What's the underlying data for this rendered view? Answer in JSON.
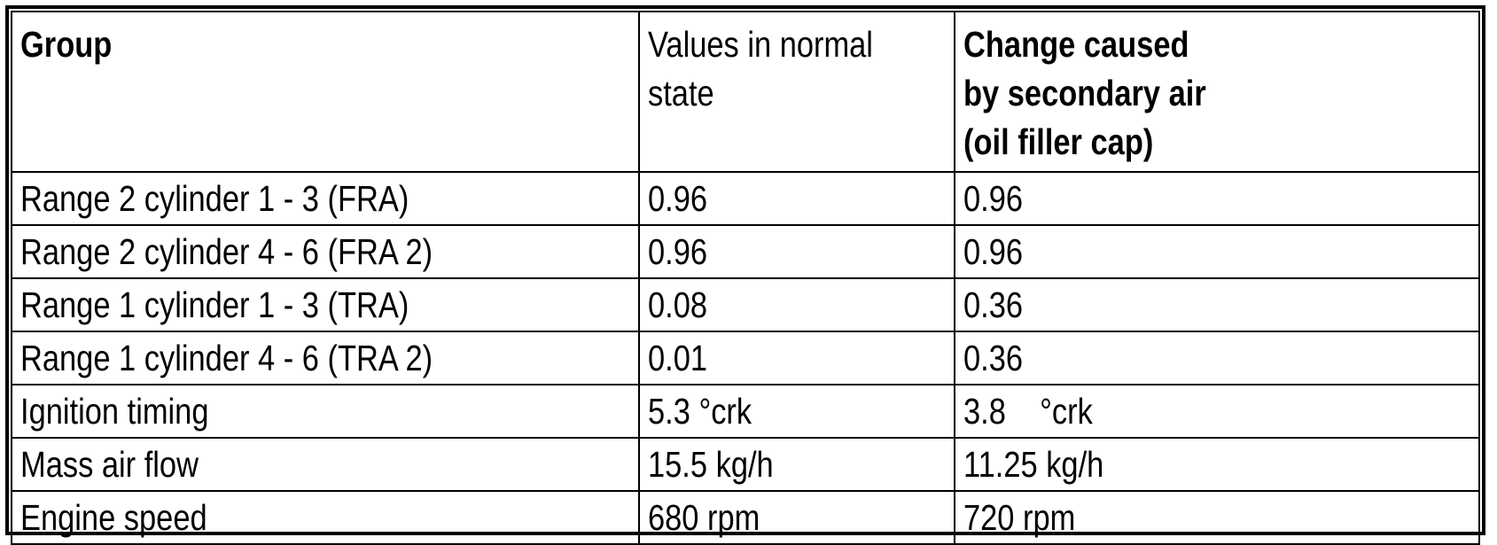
{
  "table": {
    "columns": [
      {
        "label": "Group",
        "bold": true
      },
      {
        "label": "Values in normal\nstate",
        "bold": false
      },
      {
        "label": "Change caused\nby secondary air\n(oil filler cap)",
        "bold": true
      }
    ],
    "rows": [
      {
        "group": "Range 2 cylinder 1 - 3 (FRA)",
        "normal": "0.96",
        "change": "0.96"
      },
      {
        "group": "Range 2 cylinder 4 - 6 (FRA 2)",
        "normal": "0.96",
        "change": "0.96"
      },
      {
        "group": "Range 1 cylinder 1 - 3 (TRA)",
        "normal": "0.08",
        "change": "0.36"
      },
      {
        "group": "Range 1 cylinder 4 - 6 (TRA 2)",
        "normal": "0.01",
        "change": "0.36"
      },
      {
        "group": "Ignition timing",
        "normal": "5.3 °crk",
        "change": "3.8    °crk"
      },
      {
        "group": "Mass air flow",
        "normal": "15.5 kg/h",
        "change": "11.25 kg/h"
      },
      {
        "group": "Engine speed",
        "normal": "680 rpm",
        "change": "720 rpm"
      }
    ]
  },
  "colors": {
    "border": "#000000",
    "text": "#000000",
    "background": "#ffffff"
  }
}
